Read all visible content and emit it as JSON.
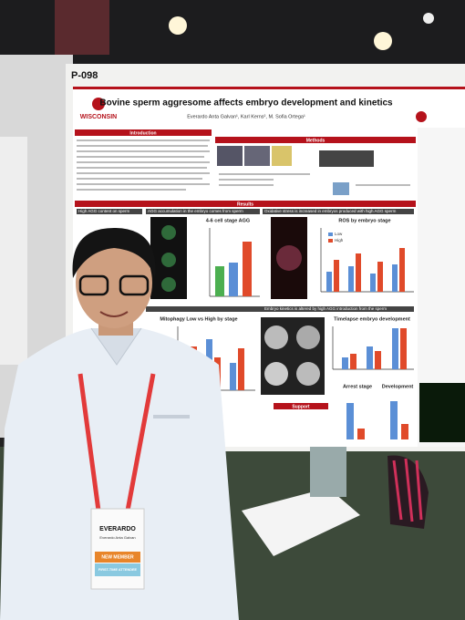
{
  "poster": {
    "number": "P-098",
    "title": "Bovine sperm aggresome affects embryo development and kinetics",
    "authors": "Everardo Anta Galvan¹, Karl Kerns², M. Sofia Ortega¹",
    "logo": "WISCONSIN",
    "sections": [
      "Introduction",
      "Methods",
      "Results",
      "Support"
    ],
    "panels": [
      "High AGG content on sperm",
      "AGG accumulation in the embryo comes from sperm",
      "Oxidative stress is increased in embryos produced with high AGG sperm",
      "Embryo kinetics is altered by high AGG introduction from the sperm"
    ],
    "charts": [
      "4-6 cell stage AGG",
      "ROS by embryo stage",
      "Mitophagy Low vs High by stage",
      "Timelapse embryo development",
      "Arrest stage",
      "Development"
    ],
    "legend": [
      "Low",
      "High"
    ]
  },
  "badge": {
    "first_name": "EVERARDO",
    "full_name": "Everardo Anta Galvan",
    "ribbon_1": "NEW MEMBER",
    "ribbon_2": "FIRST-TIME ATTENDEE"
  }
}
